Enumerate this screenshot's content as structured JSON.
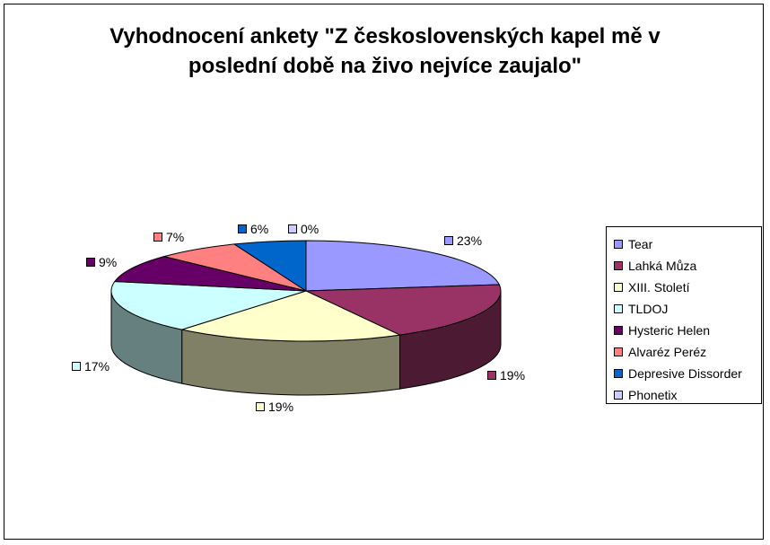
{
  "chart_data": {
    "type": "pie",
    "title": "Vyhodnocení ankety \"Z československých kapel mě v poslední době na živo nejvíce zaujalo\"",
    "title_lines": [
      "Vyhodnocení ankety \"Z československých kapel mě v",
      "poslední době na živo nejvíce zaujalo\""
    ],
    "three_d": true,
    "legend_position": "right",
    "categories": [
      "Tear",
      "Lahká Můza",
      "XIII. Století",
      "TLDOJ",
      "Hysteric Helen",
      "Alvaréz Peréz",
      "Depresive Dissorder",
      "Phonetix"
    ],
    "values": [
      23,
      19,
      19,
      17,
      9,
      7,
      6,
      0
    ],
    "labels": [
      "23%",
      "19%",
      "19%",
      "17%",
      "9%",
      "7%",
      "6%",
      "0%"
    ],
    "colors": [
      "#9999ff",
      "#993366",
      "#ffffcc",
      "#ccffff",
      "#660066",
      "#ff8080",
      "#0066cc",
      "#ccccff"
    ]
  }
}
